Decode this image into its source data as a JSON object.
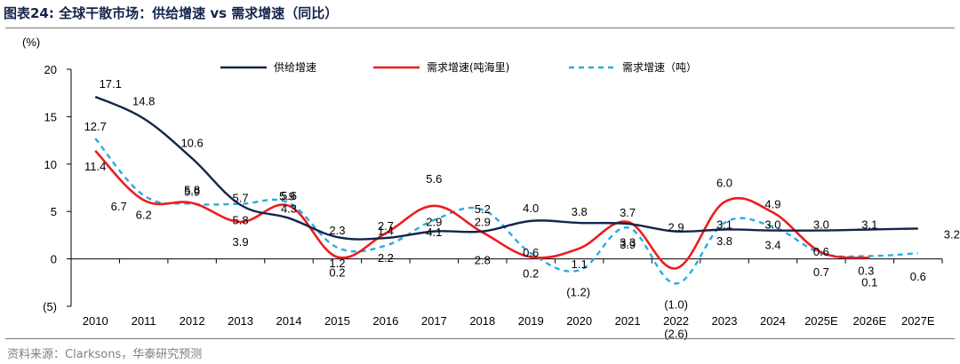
{
  "figure_title": "图表24:  全球干散市场：供给增速 vs 需求增速（同比）",
  "source": "资料来源：Clarksons，华泰研究预测",
  "chart_data": {
    "type": "line",
    "ylabel": "(%)",
    "ylim": [
      -5,
      20
    ],
    "yticks": [
      -5,
      0,
      5,
      10,
      15,
      20
    ],
    "ytick_labels": [
      "(5)",
      "0",
      "5",
      "10",
      "15",
      "20"
    ],
    "categories": [
      "2010",
      "2011",
      "2012",
      "2013",
      "2014",
      "2015",
      "2016",
      "2017",
      "2018",
      "2019",
      "2020",
      "2021",
      "2022",
      "2023",
      "2024",
      "2025E",
      "2026E",
      "2027E"
    ],
    "legend_position": "top",
    "grid": false,
    "series": [
      {
        "name": "供给增速",
        "color": "#14244b",
        "dash": "",
        "values": [
          17.1,
          14.8,
          10.6,
          5.7,
          4.3,
          2.3,
          2.2,
          2.9,
          2.9,
          4.0,
          3.8,
          3.7,
          2.9,
          3.1,
          3.0,
          3.0,
          3.1,
          3.2
        ],
        "labels": [
          "17.1",
          "14.8",
          "10.6",
          "5.7",
          "4.3",
          "2.3",
          "2.2",
          "2.9",
          "2.9",
          "4.0",
          "3.8",
          "3.7",
          "2.9",
          "3.1",
          "3.0",
          "3.0",
          "3.1",
          "3.2"
        ]
      },
      {
        "name": "需求增速(吨海里)",
        "color": "#ee1c1c",
        "dash": "",
        "values": [
          11.4,
          6.2,
          5.9,
          3.9,
          5.6,
          0.2,
          2.7,
          5.6,
          2.8,
          0.2,
          1.1,
          3.9,
          -1.0,
          6.0,
          4.9,
          0.7,
          0.1,
          null
        ],
        "labels": [
          "11.4",
          "6.2",
          "5.9",
          "3.9",
          "5.6",
          "0.2",
          "2.7",
          "5.6",
          "2.8",
          "0.2",
          "1.1",
          "3.9",
          "(1.0)",
          "6.0",
          "4.9",
          "0.7",
          "0.1",
          ""
        ]
      },
      {
        "name": "需求增速（吨）",
        "color": "#29abe2",
        "dash": "6,5",
        "values": [
          12.7,
          6.7,
          5.8,
          5.8,
          5.9,
          1.2,
          1.4,
          4.1,
          5.2,
          0.6,
          -1.2,
          3.3,
          -2.6,
          3.8,
          3.4,
          0.6,
          0.3,
          0.6
        ],
        "labels": [
          "12.7",
          "6.7",
          "5.8",
          "5.8",
          "5.9",
          "1.2",
          "1.4",
          "4.1",
          "5.2",
          "0.6",
          "(1.2)",
          "3.3",
          "(2.6)",
          "3.8",
          "3.4",
          "0.6",
          "0.3",
          "0.6"
        ]
      }
    ]
  }
}
